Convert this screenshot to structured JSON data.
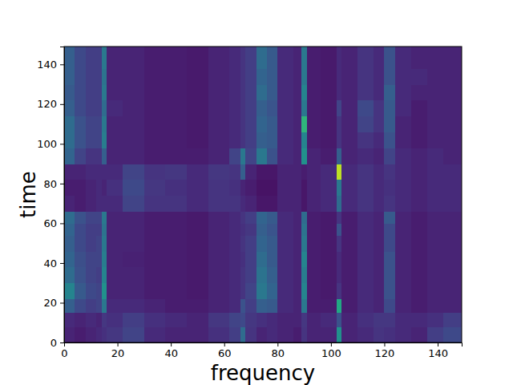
{
  "chart_data": {
    "type": "heatmap",
    "x_label": "frequency",
    "y_label": "time",
    "xlim": [
      0,
      149
    ],
    "ylim": [
      0,
      149
    ],
    "xticks": [
      0,
      20,
      40,
      60,
      80,
      100,
      120,
      140
    ],
    "yticks": [
      0,
      20,
      40,
      60,
      80,
      100,
      120,
      140
    ],
    "zlim": [
      0,
      1
    ],
    "x_edges": [
      0,
      4,
      8,
      12,
      14,
      16,
      22,
      30,
      38,
      46,
      54,
      62,
      66,
      68,
      72,
      76,
      80,
      86,
      89,
      91,
      96,
      102,
      104,
      110,
      116,
      120,
      124,
      130,
      136,
      142,
      149
    ],
    "y_edges": [
      0,
      8,
      15,
      22,
      30,
      38,
      46,
      54,
      60,
      66,
      74,
      82,
      90,
      98,
      106,
      114,
      122,
      130,
      138,
      149
    ],
    "cells": [
      [
        0.1,
        0.08,
        0.1,
        0.12,
        0.14,
        0.16,
        0.2,
        0.12,
        0.1,
        0.1,
        0.14,
        0.18,
        0.35,
        0.15,
        0.1,
        0.12,
        0.1,
        0.08,
        0.15,
        0.1,
        0.1,
        0.5,
        0.1,
        0.12,
        0.15,
        0.14,
        0.12,
        0.1,
        0.18,
        0.22
      ],
      [
        0.12,
        0.1,
        0.12,
        0.1,
        0.16,
        0.14,
        0.18,
        0.14,
        0.12,
        0.1,
        0.16,
        0.2,
        0.22,
        0.16,
        0.14,
        0.12,
        0.1,
        0.1,
        0.16,
        0.1,
        0.12,
        0.25,
        0.1,
        0.14,
        0.16,
        0.16,
        0.12,
        0.12,
        0.14,
        0.18
      ],
      [
        0.3,
        0.22,
        0.18,
        0.2,
        0.4,
        0.12,
        0.12,
        0.1,
        0.08,
        0.08,
        0.1,
        0.12,
        0.25,
        0.18,
        0.3,
        0.28,
        0.12,
        0.1,
        0.4,
        0.08,
        0.08,
        0.6,
        0.08,
        0.12,
        0.1,
        0.22,
        0.1,
        0.08,
        0.1,
        0.1
      ],
      [
        0.45,
        0.28,
        0.22,
        0.2,
        0.5,
        0.1,
        0.1,
        0.08,
        0.08,
        0.07,
        0.1,
        0.12,
        0.15,
        0.2,
        0.4,
        0.32,
        0.12,
        0.1,
        0.45,
        0.08,
        0.07,
        0.15,
        0.08,
        0.12,
        0.1,
        0.25,
        0.1,
        0.08,
        0.1,
        0.1
      ],
      [
        0.35,
        0.25,
        0.2,
        0.18,
        0.45,
        0.1,
        0.1,
        0.08,
        0.08,
        0.07,
        0.1,
        0.12,
        0.15,
        0.18,
        0.38,
        0.3,
        0.12,
        0.1,
        0.42,
        0.08,
        0.07,
        0.12,
        0.08,
        0.12,
        0.1,
        0.25,
        0.1,
        0.08,
        0.1,
        0.1
      ],
      [
        0.32,
        0.24,
        0.2,
        0.2,
        0.42,
        0.1,
        0.09,
        0.08,
        0.08,
        0.07,
        0.1,
        0.12,
        0.14,
        0.18,
        0.35,
        0.28,
        0.12,
        0.1,
        0.45,
        0.08,
        0.07,
        0.12,
        0.08,
        0.12,
        0.1,
        0.25,
        0.1,
        0.08,
        0.1,
        0.1
      ],
      [
        0.3,
        0.22,
        0.18,
        0.2,
        0.4,
        0.1,
        0.1,
        0.08,
        0.08,
        0.07,
        0.1,
        0.12,
        0.15,
        0.18,
        0.32,
        0.28,
        0.12,
        0.1,
        0.4,
        0.08,
        0.07,
        0.15,
        0.08,
        0.12,
        0.1,
        0.22,
        0.1,
        0.08,
        0.1,
        0.1
      ],
      [
        0.32,
        0.22,
        0.18,
        0.18,
        0.38,
        0.1,
        0.1,
        0.08,
        0.08,
        0.07,
        0.1,
        0.12,
        0.14,
        0.16,
        0.3,
        0.26,
        0.12,
        0.1,
        0.38,
        0.08,
        0.07,
        0.25,
        0.08,
        0.12,
        0.1,
        0.22,
        0.1,
        0.08,
        0.1,
        0.1
      ],
      [
        0.35,
        0.25,
        0.2,
        0.2,
        0.4,
        0.1,
        0.1,
        0.08,
        0.08,
        0.07,
        0.1,
        0.12,
        0.15,
        0.18,
        0.32,
        0.28,
        0.12,
        0.1,
        0.35,
        0.08,
        0.07,
        0.15,
        0.08,
        0.12,
        0.1,
        0.28,
        0.1,
        0.08,
        0.1,
        0.1
      ],
      [
        0.1,
        0.08,
        0.1,
        0.12,
        0.12,
        0.12,
        0.2,
        0.15,
        0.15,
        0.12,
        0.15,
        0.15,
        0.12,
        0.1,
        0.06,
        0.06,
        0.1,
        0.1,
        0.06,
        0.1,
        0.12,
        0.35,
        0.12,
        0.15,
        0.12,
        0.15,
        0.12,
        0.1,
        0.12,
        0.12
      ],
      [
        0.08,
        0.08,
        0.1,
        0.12,
        0.1,
        0.14,
        0.22,
        0.16,
        0.14,
        0.12,
        0.15,
        0.14,
        0.1,
        0.08,
        0.05,
        0.05,
        0.1,
        0.1,
        0.06,
        0.1,
        0.12,
        0.4,
        0.12,
        0.15,
        0.12,
        0.14,
        0.12,
        0.1,
        0.12,
        0.12
      ],
      [
        0.1,
        0.1,
        0.12,
        0.12,
        0.12,
        0.12,
        0.2,
        0.15,
        0.16,
        0.12,
        0.16,
        0.15,
        0.3,
        0.1,
        0.06,
        0.06,
        0.1,
        0.1,
        0.08,
        0.1,
        0.12,
        0.9,
        0.12,
        0.15,
        0.12,
        0.15,
        0.12,
        0.1,
        0.12,
        0.12
      ],
      [
        0.32,
        0.2,
        0.15,
        0.15,
        0.3,
        0.1,
        0.1,
        0.08,
        0.08,
        0.08,
        0.1,
        0.2,
        0.4,
        0.2,
        0.4,
        0.25,
        0.12,
        0.1,
        0.5,
        0.1,
        0.08,
        0.3,
        0.1,
        0.12,
        0.1,
        0.2,
        0.12,
        0.1,
        0.12,
        0.1
      ],
      [
        0.35,
        0.25,
        0.2,
        0.2,
        0.42,
        0.1,
        0.1,
        0.08,
        0.08,
        0.07,
        0.1,
        0.12,
        0.15,
        0.18,
        0.3,
        0.28,
        0.12,
        0.1,
        0.45,
        0.08,
        0.07,
        0.15,
        0.1,
        0.15,
        0.12,
        0.25,
        0.1,
        0.08,
        0.1,
        0.1
      ],
      [
        0.35,
        0.25,
        0.2,
        0.2,
        0.4,
        0.1,
        0.1,
        0.08,
        0.08,
        0.07,
        0.1,
        0.12,
        0.15,
        0.18,
        0.32,
        0.28,
        0.12,
        0.1,
        0.65,
        0.08,
        0.07,
        0.15,
        0.1,
        0.2,
        0.15,
        0.28,
        0.1,
        0.08,
        0.1,
        0.1
      ],
      [
        0.3,
        0.22,
        0.18,
        0.18,
        0.35,
        0.12,
        0.1,
        0.08,
        0.08,
        0.07,
        0.1,
        0.12,
        0.15,
        0.18,
        0.3,
        0.26,
        0.12,
        0.1,
        0.4,
        0.08,
        0.07,
        0.2,
        0.1,
        0.22,
        0.15,
        0.28,
        0.12,
        0.08,
        0.1,
        0.1
      ],
      [
        0.28,
        0.22,
        0.18,
        0.18,
        0.4,
        0.1,
        0.1,
        0.08,
        0.08,
        0.07,
        0.1,
        0.12,
        0.15,
        0.18,
        0.35,
        0.28,
        0.12,
        0.1,
        0.45,
        0.08,
        0.07,
        0.12,
        0.1,
        0.15,
        0.12,
        0.3,
        0.12,
        0.1,
        0.1,
        0.1
      ],
      [
        0.3,
        0.22,
        0.18,
        0.18,
        0.38,
        0.1,
        0.1,
        0.08,
        0.08,
        0.07,
        0.1,
        0.12,
        0.15,
        0.18,
        0.32,
        0.28,
        0.12,
        0.1,
        0.4,
        0.08,
        0.07,
        0.12,
        0.1,
        0.15,
        0.12,
        0.25,
        0.12,
        0.12,
        0.1,
        0.1
      ],
      [
        0.3,
        0.22,
        0.18,
        0.18,
        0.4,
        0.1,
        0.1,
        0.08,
        0.08,
        0.07,
        0.1,
        0.12,
        0.15,
        0.18,
        0.35,
        0.28,
        0.12,
        0.1,
        0.4,
        0.08,
        0.07,
        0.12,
        0.1,
        0.15,
        0.12,
        0.25,
        0.12,
        0.1,
        0.1,
        0.1
      ]
    ]
  }
}
